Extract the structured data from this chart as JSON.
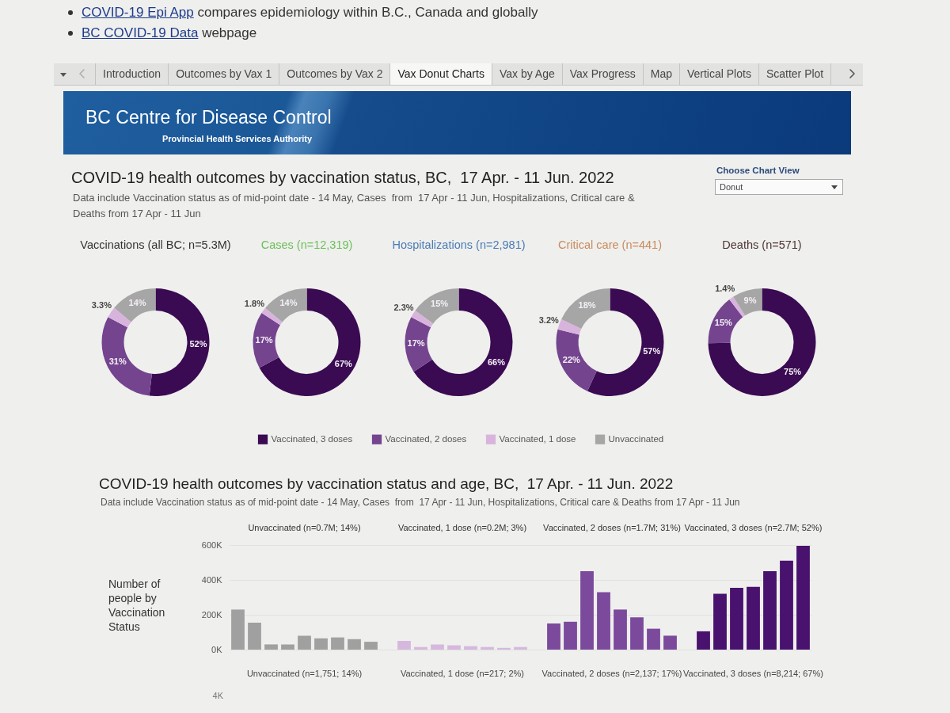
{
  "chart_data": [
    {
      "type": "other",
      "title": "COVID-19 health outcomes by vaccination status, BC,  17 Apr. - 11 Jun. 2022",
      "subtitle": "Data include Vaccination status as of mid-point date - 14 May, Cases  from  17 Apr - 11 Jun, Hospitalizations, Critical care & Deaths from 17 Apr - 11 Jun",
      "annotations": [
        "COVID-19 Epi App",
        "compares epidemiology within B.C., Canada and globally",
        "BC COVID-19 Data",
        "webpage",
        "Introduction",
        "Outcomes by Vax 1",
        "Outcomes by Vax 2",
        "Vax Donut Charts",
        "Vax by Age",
        "Vax Progress",
        "Map",
        "Vertical Plots",
        "Scatter Plot",
        "BC Centre for Disease Control",
        "Provincial Health Services Authority",
        "Choose Chart View",
        "Donut"
      ]
    },
    {
      "type": "donut",
      "title": "Vaccinations (all BC; n=5.3M)",
      "categories": [
        null,
        null,
        null,
        null
      ],
      "values": [
        52,
        31,
        3.3,
        14
      ],
      "colors": [
        "#3a0a52",
        "#74448f",
        "#d8b4dd",
        "#a6a6a6"
      ],
      "value_labels": [
        "52%",
        "31%",
        "3.3%",
        "14%"
      ]
    },
    {
      "type": "donut",
      "title": "Cases (n=12,319)",
      "categories": [
        null,
        null,
        null,
        null
      ],
      "values": [
        67,
        17,
        1.8,
        14
      ],
      "colors": [
        "#3a0a52",
        "#74448f",
        "#d8b4dd",
        "#a6a6a6"
      ],
      "value_labels": [
        "67%",
        "17%",
        "1.8%",
        "14%"
      ]
    },
    {
      "type": "donut",
      "title": "Hospitalizations (n=2,981)",
      "categories": [
        "Vaccinated, 3 doses",
        "Vaccinated, 2 doses",
        "Vaccinated, 1 dose",
        "Unvaccinated"
      ],
      "values": [
        66,
        17,
        2.3,
        15
      ],
      "colors": [
        "#3a0a52",
        "#74448f",
        "#d8b4dd",
        "#a6a6a6"
      ],
      "value_labels": [
        "66%",
        "17%",
        "2.3%",
        "15%"
      ],
      "legend": "bottom"
    },
    {
      "type": "donut",
      "title": "Critical care (n=441)",
      "categories": [
        null,
        null,
        null,
        null
      ],
      "values": [
        57,
        22,
        3.2,
        18
      ],
      "colors": [
        "#3a0a52",
        "#74448f",
        "#d8b4dd",
        "#a6a6a6"
      ],
      "value_labels": [
        "57%",
        "22%",
        "3.2%",
        "18%"
      ]
    },
    {
      "type": "donut",
      "title": "Deaths (n=571)",
      "categories": [
        null,
        null,
        null,
        null
      ],
      "values": [
        75,
        15,
        1.4,
        9
      ],
      "colors": [
        "#3a0a52",
        "#74448f",
        "#d8b4dd",
        "#a6a6a6"
      ],
      "value_labels": [
        "75%",
        "15%",
        "1.4%",
        "9%"
      ]
    },
    {
      "type": "other",
      "title": "COVID-19 health outcomes by vaccination status and age, BC,  17 Apr. - 11 Jun. 2022",
      "subtitle": "Data include Vaccination status as of mid-point date - 14 May, Cases  from  17 Apr - 11 Jun, Hospitalizations, Critical care & Deaths from 17 Apr - 11 Jun"
    },
    {
      "type": "bar",
      "ylabel": "Number of people by Vaccination Status",
      "categories": [
        null,
        null,
        null,
        null,
        null,
        null,
        null,
        null,
        null,
        null,
        null,
        null,
        null,
        null,
        null,
        null,
        null,
        null,
        null,
        null,
        null,
        null,
        null,
        null,
        null,
        null,
        null,
        null,
        null,
        null,
        null,
        null,
        null,
        null,
        null
      ],
      "series": [
        {
          "color": "#a0a0a0",
          "values": [
            230000,
            155000,
            30000,
            30000,
            80000,
            65000,
            70000,
            60000,
            45000,
            null,
            null,
            null,
            null,
            null,
            null,
            null,
            null,
            null,
            null,
            null,
            null,
            null,
            null,
            null,
            null,
            null,
            null,
            null,
            null,
            null,
            null,
            null,
            null,
            null,
            null
          ]
        },
        {
          "color": "#d6b8de",
          "values": [
            null,
            null,
            null,
            null,
            null,
            null,
            null,
            null,
            null,
            null,
            50000,
            15000,
            30000,
            25000,
            20000,
            15000,
            10000,
            15000,
            null,
            null,
            null,
            null,
            null,
            null,
            null,
            null,
            null,
            null,
            null,
            null,
            null,
            null,
            null,
            null,
            null
          ]
        },
        {
          "color": "#7b4a9c",
          "values": [
            null,
            null,
            null,
            null,
            null,
            null,
            null,
            null,
            null,
            null,
            null,
            null,
            null,
            null,
            null,
            null,
            null,
            null,
            null,
            150000,
            160000,
            450000,
            330000,
            230000,
            185000,
            120000,
            80000,
            null,
            null,
            null,
            null,
            null,
            null,
            null,
            null
          ]
        },
        {
          "color": "#48126e",
          "values": [
            null,
            null,
            null,
            null,
            null,
            null,
            null,
            null,
            null,
            null,
            null,
            null,
            null,
            null,
            null,
            null,
            null,
            null,
            null,
            null,
            null,
            null,
            null,
            null,
            null,
            null,
            null,
            null,
            105000,
            320000,
            355000,
            360000,
            450000,
            510000,
            595000
          ]
        }
      ],
      "ylim": [
        0,
        600000
      ],
      "yticks": [
        {
          "value": 0,
          "label": "0K"
        },
        {
          "value": 200000,
          "label": "200K"
        },
        {
          "value": 400000,
          "label": "400K"
        },
        {
          "value": 600000,
          "label": "600K"
        }
      ],
      "grid": "y",
      "tick_labels": "y",
      "annotations": [
        "Unvaccinated (n=0.7M; 14%)",
        "Vaccinated, 1 dose (n=0.2M; 3%)",
        "Vaccinated, 2 doses (n=1.7M; 31%)",
        "Vaccinated, 3 doses (n=2.7M; 52%)"
      ]
    },
    {
      "type": "other",
      "annotations": [
        "Unvaccinated (n=1,751; 14%)",
        "Vaccinated, 1 dose (n=217; 2%)",
        "Vaccinated, 2 doses (n=2,137; 17%)",
        "Vaccinated, 3 doses (n=8,214; 67%)",
        "4K"
      ]
    }
  ]
}
